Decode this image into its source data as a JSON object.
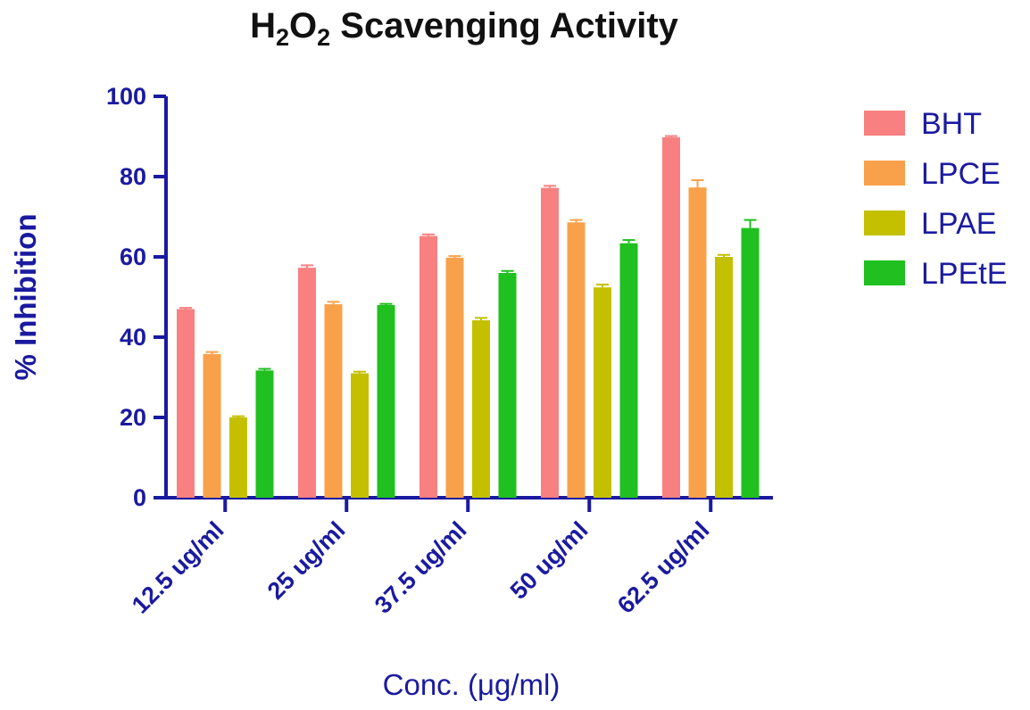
{
  "chart_data": {
    "type": "bar",
    "title": "H2O2 Scavenging Activity",
    "title_parts": {
      "h": "H",
      "sub1": "2",
      "o": "O",
      "sub2": "2",
      "rest": " Scavenging Activity"
    },
    "xlabel": "Conc. (μg/ml)",
    "ylabel": "% Inhibition",
    "categories": [
      "12.5 ug/ml",
      "25 ug/ml",
      "37.5 ug/ml",
      "50 ug/ml",
      "62.5 ug/ml"
    ],
    "ylim": [
      0,
      100
    ],
    "yticks": [
      "0",
      "20",
      "40",
      "60",
      "80",
      "100"
    ],
    "legend_position": "right",
    "grid": false,
    "axis_color": "#1a1aa0",
    "series": [
      {
        "name": "BHT",
        "color": "#f88080",
        "values": [
          47.0,
          57.3,
          65.2,
          77.2,
          89.8
        ],
        "errors": [
          0.3,
          0.6,
          0.4,
          0.5,
          0.3
        ]
      },
      {
        "name": "LPCE",
        "color": "#f9a14a",
        "values": [
          35.8,
          48.2,
          59.8,
          68.6,
          77.3
        ],
        "errors": [
          0.5,
          0.6,
          0.4,
          0.6,
          1.8
        ]
      },
      {
        "name": "LPAE",
        "color": "#c4c000",
        "values": [
          20.0,
          31.0,
          44.2,
          52.4,
          60.0
        ],
        "errors": [
          0.3,
          0.4,
          0.6,
          0.7,
          0.5
        ]
      },
      {
        "name": "LPEtE",
        "color": "#1fc01f",
        "values": [
          31.7,
          48.0,
          56.0,
          63.4,
          67.2
        ],
        "errors": [
          0.4,
          0.3,
          0.5,
          0.8,
          2.0
        ]
      }
    ]
  }
}
